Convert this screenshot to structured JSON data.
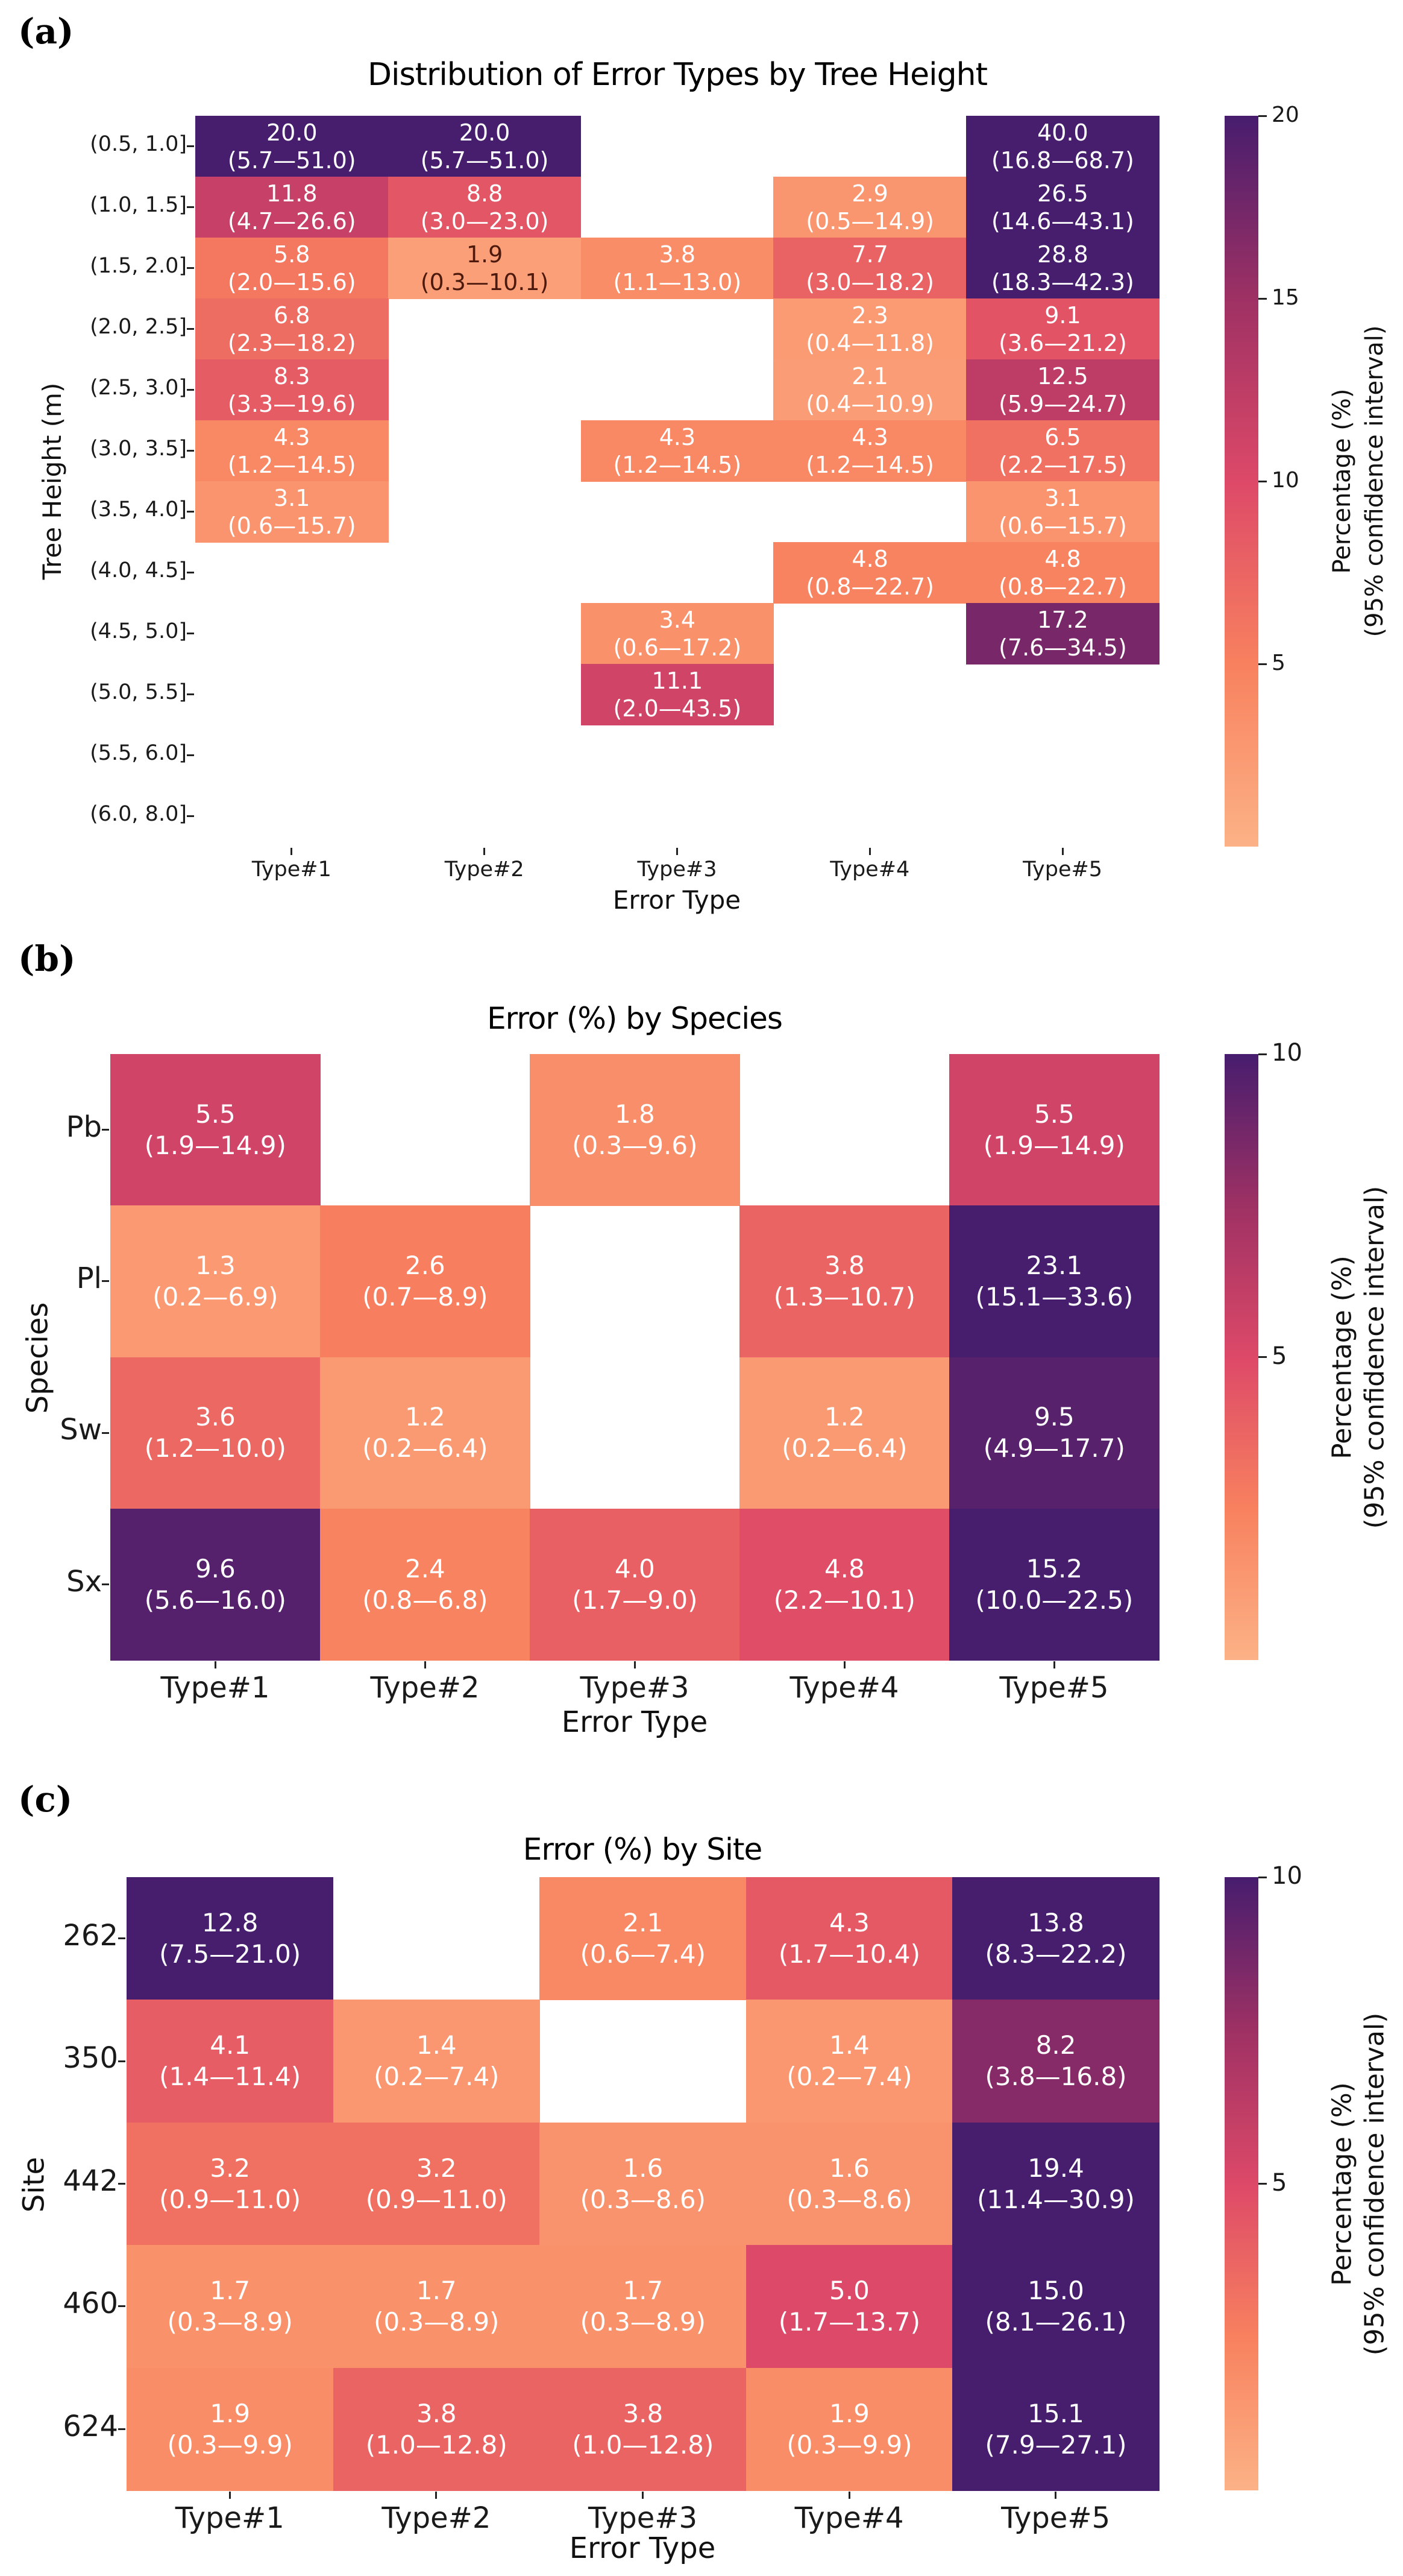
{
  "style": {
    "background": "#ffffff",
    "annotation_light": "#ffffff",
    "annotation_dark": "#4d190d",
    "dark_text_threshold": 0.1,
    "colormap_stops": [
      [
        0,
        "#fcb286"
      ],
      [
        0.25,
        "#f8815f"
      ],
      [
        0.5,
        "#dd4968"
      ],
      [
        0.75,
        "#9e3164"
      ],
      [
        1,
        "#471d6e"
      ]
    ]
  },
  "chart_data": [
    {
      "type": "heatmap",
      "panel_label": "(a)",
      "title": "Distribution of Error Types by Tree Height",
      "xlabel": "Error Type",
      "ylabel": "Tree Height (m)",
      "x_categories": [
        "Type#1",
        "Type#2",
        "Type#3",
        "Type#4",
        "Type#5"
      ],
      "y_categories": [
        "(0.5, 1.0]",
        "(1.0, 1.5]",
        "(1.5, 2.0]",
        "(2.0, 2.5]",
        "(2.5, 3.0]",
        "(3.0, 3.5]",
        "(3.5, 4.0]",
        "(4.0, 4.5]",
        "(4.5, 5.0]",
        "(5.0, 5.5]",
        "(5.5, 6.0]",
        "(6.0, 8.0]"
      ],
      "vmin": 0,
      "vmax": 20,
      "grid": false,
      "legend_position": "right",
      "colorbar_ticks": [
        20,
        15,
        10,
        5
      ],
      "colorbar_label": [
        "Percentage (%)",
        "(95% confidence interval)"
      ],
      "values": [
        [
          20.0,
          20.0,
          null,
          null,
          40.0
        ],
        [
          11.8,
          8.8,
          null,
          2.9,
          26.5
        ],
        [
          5.8,
          1.9,
          3.8,
          7.7,
          28.8
        ],
        [
          6.8,
          null,
          null,
          2.3,
          9.1
        ],
        [
          8.3,
          null,
          null,
          2.1,
          12.5
        ],
        [
          4.3,
          null,
          4.3,
          4.3,
          6.5
        ],
        [
          3.1,
          null,
          null,
          null,
          3.1
        ],
        [
          null,
          null,
          null,
          4.8,
          4.8
        ],
        [
          null,
          null,
          3.4,
          null,
          17.2
        ],
        [
          null,
          null,
          11.1,
          null,
          null
        ],
        [
          null,
          null,
          null,
          null,
          null
        ],
        [
          null,
          null,
          null,
          null,
          null
        ]
      ],
      "ci": [
        [
          "(5.7—51.0)",
          "(5.7—51.0)",
          null,
          null,
          "(16.8—68.7)"
        ],
        [
          "(4.7—26.6)",
          "(3.0—23.0)",
          null,
          "(0.5—14.9)",
          "(14.6—43.1)"
        ],
        [
          "(2.0—15.6)",
          "(0.3—10.1)",
          "(1.1—13.0)",
          "(3.0—18.2)",
          "(18.3—42.3)"
        ],
        [
          "(2.3—18.2)",
          null,
          null,
          "(0.4—11.8)",
          "(3.6—21.2)"
        ],
        [
          "(3.3—19.6)",
          null,
          null,
          "(0.4—10.9)",
          "(5.9—24.7)"
        ],
        [
          "(1.2—14.5)",
          null,
          "(1.2—14.5)",
          "(1.2—14.5)",
          "(2.2—17.5)"
        ],
        [
          "(0.6—15.7)",
          null,
          null,
          null,
          "(0.6—15.7)"
        ],
        [
          null,
          null,
          null,
          "(0.8—22.7)",
          "(0.8—22.7)"
        ],
        [
          null,
          null,
          "(0.6—17.2)",
          null,
          "(7.6—34.5)"
        ],
        [
          null,
          null,
          "(2.0—43.5)",
          null,
          null
        ],
        [
          null,
          null,
          null,
          null,
          null
        ],
        [
          null,
          null,
          null,
          null,
          null
        ]
      ]
    },
    {
      "type": "heatmap",
      "panel_label": "(b)",
      "title": "Error (%) by Species",
      "xlabel": "Error Type",
      "ylabel": "Species",
      "x_categories": [
        "Type#1",
        "Type#2",
        "Type#3",
        "Type#4",
        "Type#5"
      ],
      "y_categories": [
        "Pb",
        "Pl",
        "Sw",
        "Sx"
      ],
      "vmin": 0,
      "vmax": 10,
      "grid": false,
      "legend_position": "right",
      "colorbar_ticks": [
        10,
        5
      ],
      "colorbar_label": [
        "Percentage (%)",
        "(95% confidence interval)"
      ],
      "values": [
        [
          5.5,
          null,
          1.8,
          null,
          5.5
        ],
        [
          1.3,
          2.6,
          null,
          3.8,
          23.1
        ],
        [
          3.6,
          1.2,
          null,
          1.2,
          9.5
        ],
        [
          9.6,
          2.4,
          4.0,
          4.8,
          15.2
        ]
      ],
      "ci": [
        [
          "(1.9—14.9)",
          null,
          "(0.3—9.6)",
          null,
          "(1.9—14.9)"
        ],
        [
          "(0.2—6.9)",
          "(0.7—8.9)",
          null,
          "(1.3—10.7)",
          "(15.1—33.6)"
        ],
        [
          "(1.2—10.0)",
          "(0.2—6.4)",
          null,
          "(0.2—6.4)",
          "(4.9—17.7)"
        ],
        [
          "(5.6—16.0)",
          "(0.8—6.8)",
          "(1.7—9.0)",
          "(2.2—10.1)",
          "(10.0—22.5)"
        ]
      ]
    },
    {
      "type": "heatmap",
      "panel_label": "(c)",
      "title": "Error (%) by Site",
      "xlabel": "Error Type",
      "ylabel": "Site",
      "x_categories": [
        "Type#1",
        "Type#2",
        "Type#3",
        "Type#4",
        "Type#5"
      ],
      "y_categories": [
        "262",
        "350",
        "442",
        "460",
        "624"
      ],
      "vmin": 0,
      "vmax": 10,
      "grid": false,
      "legend_position": "right",
      "colorbar_ticks": [
        10,
        5
      ],
      "colorbar_label": [
        "Percentage (%)",
        "(95% confidence interval)"
      ],
      "values": [
        [
          12.8,
          null,
          2.1,
          4.3,
          13.8
        ],
        [
          4.1,
          1.4,
          null,
          1.4,
          8.2
        ],
        [
          3.2,
          3.2,
          1.6,
          1.6,
          19.4
        ],
        [
          1.7,
          1.7,
          1.7,
          5.0,
          15.0
        ],
        [
          1.9,
          3.8,
          3.8,
          1.9,
          15.1
        ]
      ],
      "ci": [
        [
          "(7.5—21.0)",
          null,
          "(0.6—7.4)",
          "(1.7—10.4)",
          "(8.3—22.2)"
        ],
        [
          "(1.4—11.4)",
          "(0.2—7.4)",
          null,
          "(0.2—7.4)",
          "(3.8—16.8)"
        ],
        [
          "(0.9—11.0)",
          "(0.9—11.0)",
          "(0.3—8.6)",
          "(0.3—8.6)",
          "(11.4—30.9)"
        ],
        [
          "(0.3—8.9)",
          "(0.3—8.9)",
          "(0.3—8.9)",
          "(1.7—13.7)",
          "(8.1—26.1)"
        ],
        [
          "(0.3—9.9)",
          "(1.0—12.8)",
          "(1.0—12.8)",
          "(0.3—9.9)",
          "(7.9—27.1)"
        ]
      ]
    }
  ]
}
